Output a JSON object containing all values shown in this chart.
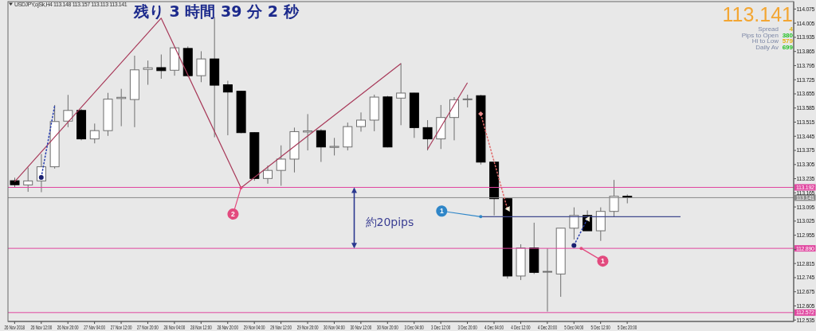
{
  "chart_data": {
    "type": "candlestick",
    "title": "残り 3 時間 39 分 2 秒",
    "subtitle": "USDJPY,ojSk,H4 113.148 113.157 113.113 113.141",
    "categories": [
      "26 Nov 2018",
      null,
      "26 Nov 12:00",
      null,
      "26 Nov 20:00",
      null,
      "27 Nov 04:00",
      null,
      "27 Nov 12:00",
      null,
      "27 Nov 20:00",
      null,
      "28 Nov 04:00",
      null,
      "28 Nov 12:00",
      null,
      "28 Nov 20:00",
      null,
      "29 Nov 04:00",
      null,
      "29 Nov 12:00",
      null,
      "29 Nov 20:00",
      null,
      "30 Nov 04:00",
      null,
      "30 Nov 12:00",
      null,
      "30 Nov 20:00",
      null,
      "3 Dec 04:00",
      null,
      "3 Dec 12:00",
      null,
      "3 Dec 20:00",
      null,
      "4 Dec 04:00",
      null,
      "4 Dec 12:00",
      null,
      "4 Dec 20:00",
      null,
      "5 Dec 04:00",
      null,
      "5 Dec 12:00",
      null,
      "5 Dec 20:00",
      null,
      null,
      null,
      null,
      null,
      null,
      null,
      null,
      null,
      null,
      null,
      null
    ],
    "ohlc": [
      [
        113.225,
        113.24,
        113.19,
        113.205
      ],
      [
        113.204,
        113.29,
        113.17,
        113.224
      ],
      [
        113.224,
        113.357,
        113.168,
        113.294
      ],
      [
        113.294,
        113.6,
        113.285,
        113.518
      ],
      [
        113.52,
        113.65,
        113.49,
        113.573
      ],
      [
        113.573,
        113.58,
        113.425,
        113.432
      ],
      [
        113.432,
        113.508,
        113.41,
        113.473
      ],
      [
        113.473,
        113.66,
        113.447,
        113.629
      ],
      [
        113.632,
        113.68,
        113.495,
        113.638
      ],
      [
        113.627,
        113.844,
        113.49,
        113.774
      ],
      [
        113.776,
        113.82,
        113.7,
        113.784
      ],
      [
        113.785,
        113.85,
        113.73,
        113.77
      ],
      [
        113.772,
        113.885,
        113.745,
        113.883
      ],
      [
        113.88,
        113.89,
        113.74,
        113.745
      ],
      [
        113.745,
        113.866,
        113.713,
        113.828
      ],
      [
        113.828,
        114.035,
        113.44,
        113.698
      ],
      [
        113.7,
        113.72,
        113.45,
        113.664
      ],
      [
        113.668,
        113.67,
        113.46,
        113.463
      ],
      [
        113.463,
        113.465,
        113.225,
        113.236
      ],
      [
        113.236,
        113.3,
        113.21,
        113.276
      ],
      [
        113.276,
        113.4,
        113.2,
        113.332
      ],
      [
        113.332,
        113.488,
        113.266,
        113.468
      ],
      [
        113.466,
        113.555,
        113.375,
        113.472
      ],
      [
        113.473,
        113.48,
        113.318,
        113.392
      ],
      [
        113.39,
        113.437,
        113.35,
        113.395
      ],
      [
        113.392,
        113.513,
        113.375,
        113.493
      ],
      [
        113.493,
        113.563,
        113.468,
        113.525
      ],
      [
        113.525,
        113.651,
        113.47,
        113.639
      ],
      [
        113.64,
        113.645,
        113.39,
        113.392
      ],
      [
        113.634,
        113.807,
        113.5,
        113.659
      ],
      [
        113.659,
        113.66,
        113.437,
        113.488
      ],
      [
        113.488,
        113.525,
        113.375,
        113.432
      ],
      [
        113.432,
        113.6,
        113.382,
        113.538
      ],
      [
        113.538,
        113.639,
        113.425,
        113.626
      ],
      [
        113.626,
        113.651,
        113.588,
        113.63
      ],
      [
        113.646,
        113.65,
        113.305,
        113.317
      ],
      [
        113.317,
        113.32,
        113.053,
        113.136
      ],
      [
        113.136,
        113.14,
        112.74,
        112.753
      ],
      [
        112.753,
        112.91,
        112.733,
        112.892
      ],
      [
        112.892,
        113.017,
        112.763,
        112.771
      ],
      [
        112.772,
        112.89,
        112.577,
        112.776
      ],
      [
        112.763,
        112.99,
        112.65,
        112.99
      ],
      [
        112.99,
        113.093,
        112.934,
        113.053
      ],
      [
        113.053,
        113.078,
        112.977,
        112.977
      ],
      [
        112.977,
        113.093,
        112.927,
        113.073
      ],
      [
        113.073,
        113.229,
        113.048,
        113.148
      ],
      [
        113.148,
        113.157,
        113.113,
        113.141
      ],
      null,
      null,
      null,
      null,
      null,
      null,
      null,
      null,
      null,
      null,
      null,
      null
    ],
    "series": [
      {
        "type": "line",
        "color": "#a83a5a",
        "values": [
          113.22,
          null,
          null,
          null,
          null,
          null,
          null,
          null,
          null,
          null,
          null,
          114.03,
          null,
          null,
          null,
          null,
          null,
          113.19,
          null,
          null,
          null,
          null,
          null,
          null,
          null,
          null,
          null,
          null,
          null,
          113.805,
          null,
          null,
          null,
          null,
          null,
          null,
          null,
          null,
          null,
          null,
          null,
          null,
          null,
          null,
          null,
          null,
          null,
          null,
          null,
          null,
          null,
          null,
          null,
          null,
          null,
          null,
          null,
          null,
          null
        ]
      },
      {
        "type": "line",
        "color": "#a83a5a",
        "values": [
          null,
          null,
          null,
          null,
          null,
          null,
          null,
          null,
          null,
          null,
          null,
          null,
          null,
          null,
          null,
          null,
          null,
          null,
          null,
          null,
          null,
          null,
          null,
          null,
          null,
          null,
          null,
          null,
          null,
          null,
          null,
          113.38,
          null,
          null,
          113.71,
          null,
          null,
          null,
          null,
          null,
          null,
          null,
          null,
          null,
          null,
          null,
          null,
          null,
          null,
          null,
          null,
          null,
          null,
          null,
          null,
          null,
          null,
          null,
          null
        ]
      },
      {
        "type": "line",
        "color": "#404a8e",
        "values": [
          null,
          null,
          null,
          null,
          null,
          null,
          null,
          null,
          null,
          null,
          null,
          null,
          null,
          null,
          null,
          null,
          null,
          null,
          null,
          null,
          null,
          null,
          null,
          null,
          null,
          null,
          null,
          null,
          null,
          null,
          null,
          null,
          null,
          null,
          null,
          113.047,
          null,
          null,
          null,
          null,
          null,
          null,
          null,
          null,
          null,
          null,
          null,
          null,
          null,
          null,
          113.047,
          null,
          null,
          null,
          null,
          null,
          null,
          null,
          null
        ]
      },
      {
        "type": "line",
        "color": "#2a40b0",
        "line_style": "dotted",
        "values": [
          null,
          null,
          113.241,
          113.594,
          null,
          null,
          null,
          null,
          null,
          null,
          null,
          null,
          null,
          null,
          null,
          null,
          null,
          null,
          null,
          null,
          null,
          null,
          null,
          null,
          null,
          null,
          null,
          null,
          null,
          null,
          null,
          null,
          null,
          null,
          null,
          null,
          null,
          null,
          null,
          null,
          null,
          null,
          null,
          null,
          null,
          null,
          null,
          null,
          null,
          null,
          null,
          null,
          null,
          null,
          null,
          null,
          null,
          null,
          null
        ]
      },
      {
        "type": "line",
        "color": "#e06a6a",
        "line_style": "dotted",
        "values": [
          null,
          null,
          null,
          null,
          null,
          null,
          null,
          null,
          null,
          null,
          null,
          null,
          null,
          null,
          null,
          null,
          null,
          null,
          null,
          null,
          null,
          null,
          null,
          null,
          null,
          null,
          null,
          null,
          null,
          null,
          null,
          null,
          null,
          null,
          null,
          113.556,
          null,
          113.086,
          null,
          null,
          null,
          null,
          null,
          null,
          null,
          null,
          null,
          null,
          null,
          null,
          null,
          null,
          null,
          null,
          null,
          null,
          null,
          null,
          null
        ]
      },
      {
        "type": "line",
        "color": "#2a40b0",
        "line_style": "dotted",
        "values": [
          null,
          null,
          null,
          null,
          null,
          null,
          null,
          null,
          null,
          null,
          null,
          null,
          null,
          null,
          null,
          null,
          null,
          null,
          null,
          null,
          null,
          null,
          null,
          null,
          null,
          null,
          null,
          null,
          null,
          null,
          null,
          null,
          null,
          null,
          null,
          null,
          null,
          null,
          null,
          null,
          null,
          null,
          112.904,
          113.035,
          null,
          null,
          null,
          null,
          null,
          null,
          null,
          null,
          null,
          null,
          null,
          null,
          null,
          null,
          null
        ]
      },
      {
        "type": "scatter",
        "color": "#f4f0dc",
        "marker": "triangle",
        "values": [
          null,
          null,
          null,
          null,
          null,
          null,
          null,
          null,
          null,
          null,
          null,
          null,
          null,
          null,
          null,
          null,
          null,
          null,
          null,
          null,
          null,
          null,
          null,
          null,
          null,
          null,
          null,
          null,
          null,
          null,
          null,
          null,
          null,
          null,
          null,
          null,
          null,
          113.086,
          null,
          null,
          null,
          null,
          null,
          113.035,
          null,
          null,
          null,
          null,
          null,
          null,
          null,
          null,
          null,
          null,
          null,
          null,
          null,
          null,
          null
        ]
      },
      {
        "type": "scatter",
        "color": "#e88a8a",
        "marker": "diamond",
        "values": [
          null,
          null,
          null,
          null,
          null,
          null,
          null,
          null,
          null,
          null,
          null,
          null,
          null,
          null,
          null,
          null,
          null,
          null,
          null,
          null,
          null,
          null,
          null,
          null,
          null,
          null,
          null,
          null,
          null,
          null,
          null,
          null,
          null,
          null,
          null,
          113.556,
          null,
          null,
          null,
          null,
          null,
          null,
          null,
          null,
          null,
          null,
          null,
          null,
          null,
          null,
          null,
          null,
          null,
          null,
          null,
          null,
          null,
          null,
          null
        ]
      },
      {
        "type": "scatter",
        "color": "#1a2070",
        "marker": "circle",
        "values": [
          null,
          null,
          113.241,
          null,
          null,
          null,
          null,
          null,
          null,
          null,
          null,
          null,
          null,
          null,
          null,
          null,
          null,
          null,
          null,
          null,
          null,
          null,
          null,
          null,
          null,
          null,
          null,
          null,
          null,
          null,
          null,
          null,
          null,
          null,
          null,
          null,
          null,
          null,
          null,
          null,
          null,
          null,
          112.904,
          null,
          null,
          null,
          null,
          null,
          null,
          null,
          null,
          null,
          null,
          null,
          null,
          null,
          null,
          null,
          null
        ]
      }
    ],
    "ylim": [
      112.528,
      114.112
    ],
    "yticks": [
      114.075,
      114.005,
      113.935,
      113.865,
      113.795,
      113.725,
      113.655,
      113.585,
      113.515,
      113.445,
      113.375,
      113.305,
      113.235,
      113.165,
      113.095,
      113.025,
      112.955,
      {
        "value": 112.885,
        "label": null
      },
      112.815,
      112.745,
      112.675,
      112.605,
      112.535
    ],
    "ref_lines": [
      {
        "axis": "y",
        "value": 113.192,
        "label": "113.192",
        "color": "#e0459f"
      },
      {
        "axis": "y",
        "value": 113.141,
        "label": "113.141",
        "color": "#8a8a8a"
      },
      {
        "axis": "y",
        "value": 112.89,
        "label": "112.890",
        "color": "#e0459f"
      },
      {
        "axis": "y",
        "value": 112.572,
        "label": "112.572",
        "color": "#e0459f"
      }
    ],
    "annotations": [
      "113.141",
      "Spread",
      "4",
      "Pips to Open",
      "380",
      "Hi to Low",
      "579",
      "Daily Av",
      "699",
      "約20pips",
      "2",
      "1",
      {
        "text": "1",
        "y": 112.89
      }
    ]
  }
}
